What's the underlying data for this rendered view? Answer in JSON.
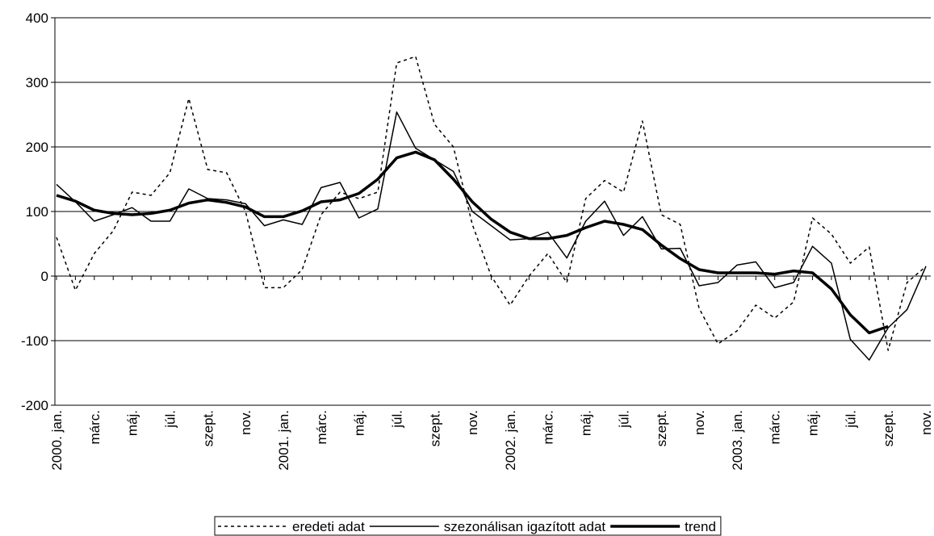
{
  "chart_data": {
    "type": "line",
    "categories": [
      "2000. jan.",
      null,
      "márc.",
      null,
      "máj.",
      null,
      "júl.",
      null,
      "szept.",
      null,
      "nov.",
      null,
      "2001. jan.",
      null,
      "márc.",
      null,
      "máj.",
      null,
      "júl.",
      null,
      "szept.",
      null,
      "nov.",
      null,
      "2002. jan.",
      null,
      "márc.",
      null,
      "máj.",
      null,
      "júl.",
      null,
      "szept.",
      null,
      "nov.",
      null,
      "2003. jan.",
      null,
      "márc.",
      null,
      "máj.",
      null,
      "júl.",
      null,
      "szept.",
      null,
      "nov."
    ],
    "series": [
      {
        "name": "eredeti adat",
        "color": "#000000",
        "dash": true,
        "width": 1.5,
        "values": [
          60,
          -22,
          35,
          70,
          130,
          125,
          160,
          275,
          165,
          160,
          100,
          -18,
          -18,
          10,
          95,
          130,
          120,
          130,
          330,
          340,
          235,
          200,
          80,
          0,
          -45,
          0,
          35,
          -10,
          120,
          148,
          130,
          240,
          95,
          80,
          -50,
          -105,
          -85,
          -45,
          -65,
          -40,
          90,
          65,
          20,
          45,
          -115,
          -10,
          15
        ]
      },
      {
        "name": "szezonálisan igazított adat",
        "color": "#000000",
        "dash": false,
        "width": 1.5,
        "values": [
          142,
          115,
          85,
          95,
          106,
          85,
          85,
          135,
          120,
          118,
          112,
          78,
          87,
          80,
          137,
          145,
          90,
          104,
          254,
          198,
          180,
          162,
          100,
          78,
          56,
          58,
          68,
          28,
          85,
          116,
          63,
          92,
          42,
          43,
          -15,
          -10,
          17,
          22,
          -18,
          -10,
          46,
          20,
          -98,
          -130,
          -80,
          -52,
          15
        ]
      },
      {
        "name": "trend",
        "color": "#000000",
        "dash": false,
        "width": 3.5,
        "values": [
          125,
          116,
          102,
          97,
          95,
          97,
          102,
          113,
          118,
          114,
          107,
          92,
          92,
          101,
          115,
          118,
          128,
          150,
          183,
          192,
          180,
          150,
          115,
          88,
          68,
          58,
          58,
          63,
          75,
          85,
          80,
          72,
          48,
          27,
          10,
          5,
          5,
          5,
          3,
          8,
          5,
          -20,
          -60,
          -88,
          -78,
          null,
          null
        ]
      }
    ],
    "ylim": [
      -200,
      400
    ],
    "yticks": [
      -200,
      -100,
      0,
      100,
      200,
      300,
      400
    ],
    "grid": true,
    "legend": "bottom"
  }
}
